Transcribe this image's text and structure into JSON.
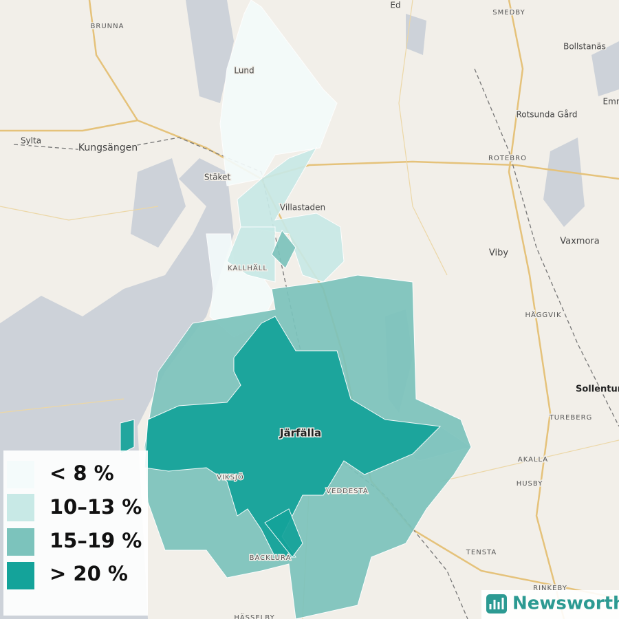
{
  "legend": {
    "items": [
      {
        "label": "< 8 %",
        "color": "#f4fbfb"
      },
      {
        "label": "10–13 %",
        "color": "#c8e9e6"
      },
      {
        "label": "15–19 %",
        "color": "#7cc3bc"
      },
      {
        "label": "> 20 %",
        "color": "#14a39a"
      }
    ]
  },
  "places": [
    "BRUNNA",
    "Ed",
    "SMEDBY",
    "Bollstanäs",
    "Emn",
    "Lund",
    "Rotsunda Gård",
    "Sylta",
    "Kungsängen",
    "ROTEBRO",
    "Stäket",
    "Villastaden",
    "Vaxmora",
    "Viby",
    "KALLHÄLL",
    "HÄGGVIK",
    "Sollentuna",
    "TUREBERG",
    "Järfälla",
    "AKALLA",
    "VIKSJÖ",
    "VEDDESTA",
    "HUSBY",
    "TENSTA",
    "BACKLURA",
    "RINKEBY",
    "HÄSSELBY"
  ],
  "brand": "Newsworthy"
}
